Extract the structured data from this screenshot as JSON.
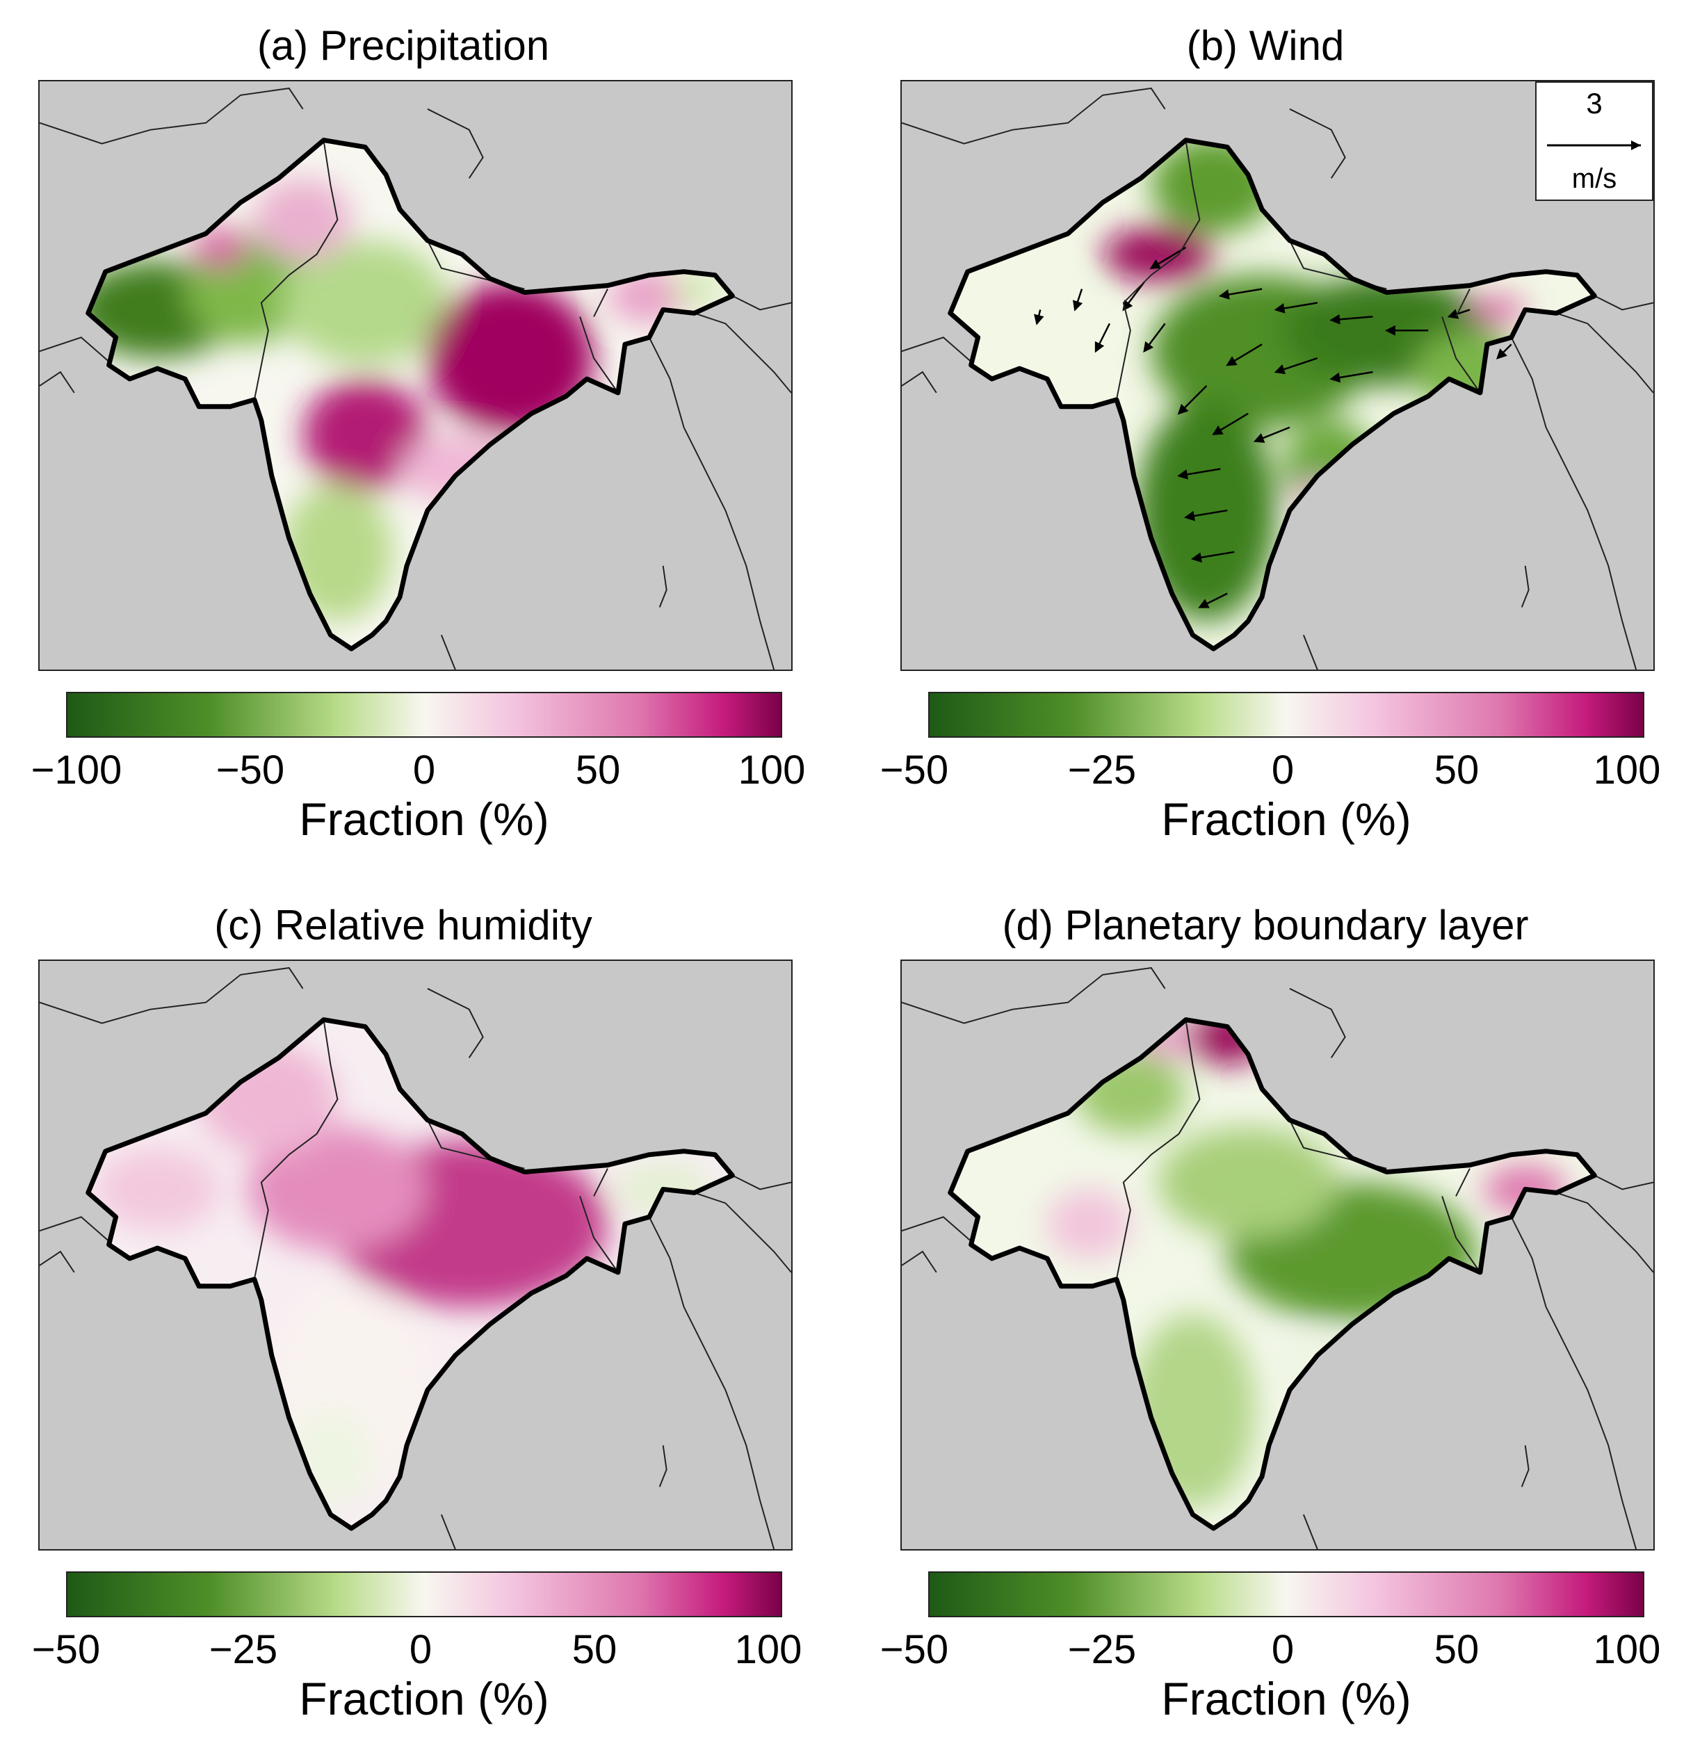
{
  "figure": {
    "panels": [
      {
        "title": "(a) Precipitation",
        "variable": "precipitation",
        "colorbar": {
          "label": "Fraction (%)",
          "ticks": [
            "−100",
            "−50",
            "0",
            "50",
            "100"
          ]
        }
      },
      {
        "title": "(b) Wind",
        "variable": "wind",
        "colorbar": {
          "label": "Fraction (%)",
          "ticks": [
            "−50",
            "−25",
            "0",
            "50",
            "100"
          ]
        },
        "vector_legend": {
          "value": "3",
          "unit": "m/s"
        }
      },
      {
        "title": "(c) Relative humidity",
        "variable": "relative_humidity",
        "colorbar": {
          "label": "Fraction (%)",
          "ticks": [
            "−50",
            "−25",
            "0",
            "50",
            "100"
          ]
        }
      },
      {
        "title": "(d) Planetary boundary layer",
        "variable": "planetary_boundary_layer",
        "colorbar": {
          "label": "Fraction (%)",
          "ticks": [
            "−50",
            "−25",
            "0",
            "50",
            "100"
          ]
        }
      }
    ],
    "colors": {
      "ocean_background": "#c8c8c8",
      "negative_dark": "#1f5a16",
      "negative_mid": "#6da83a",
      "neutral": "#f7f7f0",
      "positive_mid": "#de77ae",
      "positive_dark": "#8e0152"
    }
  }
}
